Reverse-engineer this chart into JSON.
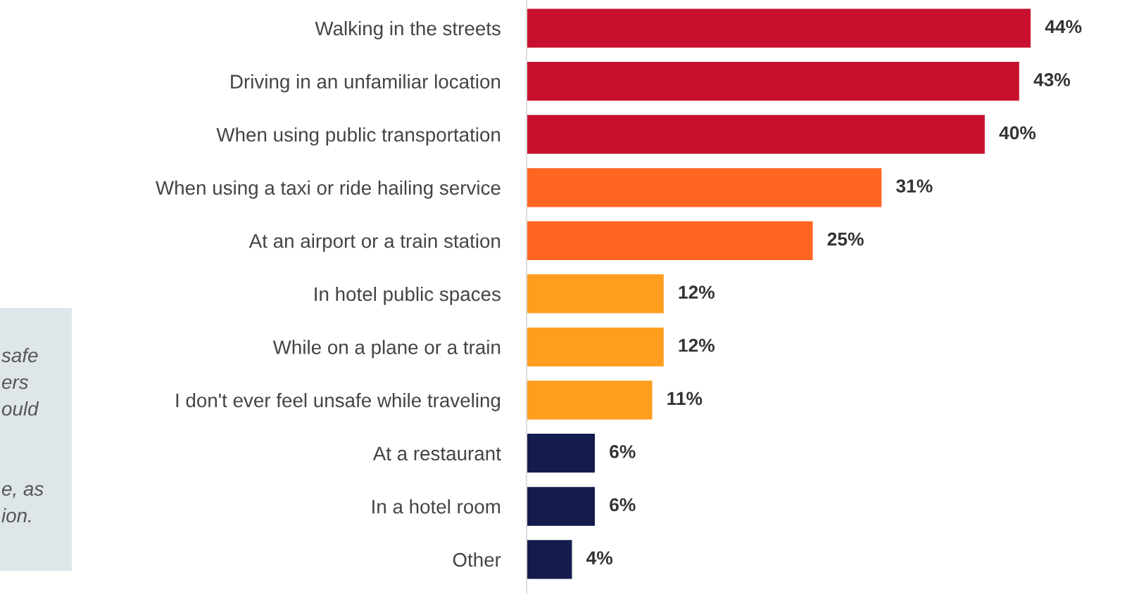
{
  "chart_data": {
    "type": "bar",
    "orientation": "horizontal",
    "legend": false,
    "grid": false,
    "value_labels": [
      "44%",
      "43%",
      "40%",
      "31%",
      "25%",
      "12%",
      "12%",
      "11%",
      "6%",
      "6%",
      "4%"
    ],
    "categories": [
      "Walking in the streets",
      "Driving in an unfamiliar location",
      "When using public transportation",
      "When using a taxi or ride hailing service",
      "At an airport or a train station",
      "In hotel public spaces",
      "While on a plane or a train",
      "I don't ever feel unsafe while traveling",
      "At a restaurant",
      "In a hotel room",
      "Other"
    ],
    "values": [
      44,
      43,
      40,
      31,
      25,
      12,
      12,
      11,
      6,
      6,
      4
    ],
    "colors": [
      "#c8102e",
      "#c8102e",
      "#c8102e",
      "#ff6622",
      "#ff6622",
      "#ff9d1e",
      "#ff9d1e",
      "#ff9d1e",
      "#141b4d",
      "#141b4d",
      "#141b4d"
    ],
    "annotations": [
      "safe\ners\nould\n\n\ne, as\nion."
    ]
  }
}
